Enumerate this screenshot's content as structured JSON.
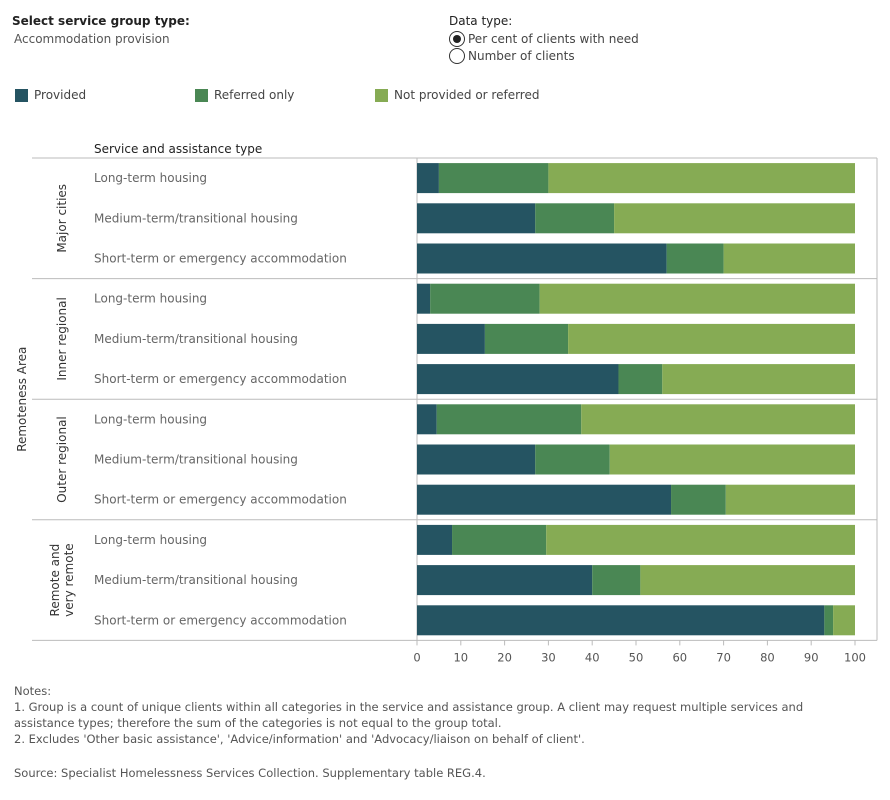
{
  "controls": {
    "service_group_title": "Select service group type:",
    "service_group_value": "Accommodation provision",
    "data_type_title": "Data type:",
    "data_type_options": [
      "Per cent of clients with need",
      "Number of clients"
    ],
    "data_type_selected": 0
  },
  "legend": [
    {
      "label": "Provided",
      "color": "#255462"
    },
    {
      "label": "Referred only",
      "color": "#4a8754"
    },
    {
      "label": "Not provided or referred",
      "color": "#86ab54"
    }
  ],
  "chart_data": {
    "type": "bar",
    "orientation": "horizontal",
    "stacked": true,
    "column_header": "Service and assistance type",
    "group_axis_label": "Remoteness Area",
    "x_ticks": [
      0,
      10,
      20,
      30,
      40,
      50,
      60,
      70,
      80,
      90,
      100
    ],
    "xlim": [
      0,
      100
    ],
    "series_names": [
      "Provided",
      "Referred only",
      "Not provided or referred"
    ],
    "groups": [
      {
        "name": "Major cities",
        "rows": [
          {
            "label": "Long-term housing",
            "values": [
              5,
              25,
              70
            ]
          },
          {
            "label": "Medium-term/transitional housing",
            "values": [
              27,
              18,
              55
            ]
          },
          {
            "label": "Short-term or emergency accommodation",
            "values": [
              57,
              13,
              30
            ]
          }
        ]
      },
      {
        "name": "Inner regional",
        "rows": [
          {
            "label": "Long-term housing",
            "values": [
              3,
              25,
              72
            ]
          },
          {
            "label": "Medium-term/transitional housing",
            "values": [
              15.5,
              19,
              65.5
            ]
          },
          {
            "label": "Short-term or emergency accommodation",
            "values": [
              46,
              10,
              44
            ]
          }
        ]
      },
      {
        "name": "Outer regional",
        "rows": [
          {
            "label": "Long-term housing",
            "values": [
              4.5,
              33,
              62.5
            ]
          },
          {
            "label": "Medium-term/transitional housing",
            "values": [
              27,
              17,
              56
            ]
          },
          {
            "label": "Short-term or emergency accommodation",
            "values": [
              58,
              12.5,
              29.5
            ]
          }
        ]
      },
      {
        "name": "Remote and very remote",
        "rows": [
          {
            "label": "Long-term housing",
            "values": [
              8,
              21.5,
              70.5
            ]
          },
          {
            "label": "Medium-term/transitional housing",
            "values": [
              40,
              11,
              49
            ]
          },
          {
            "label": "Short-term or emergency accommodation",
            "values": [
              93,
              2,
              5
            ]
          }
        ]
      }
    ]
  },
  "notes": {
    "heading": "Notes:",
    "lines": [
      "1. Group is a count of unique clients within all categories in the service and assistance group. A client may request multiple services and assistance types; therefore the sum of the categories is not equal to the group total.",
      "2. Excludes 'Other basic assistance', 'Advice/information' and 'Advocacy/liaison on behalf of client'."
    ]
  },
  "source": "Source: Specialist Homelessness Services Collection. Supplementary table REG.4."
}
